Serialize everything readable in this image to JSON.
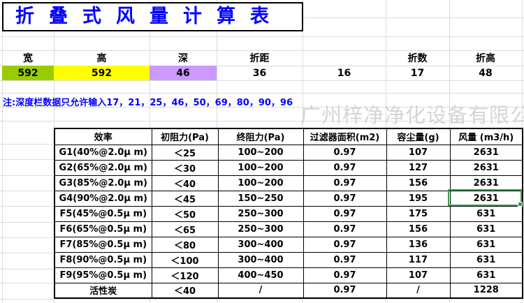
{
  "title": "折叠式风量计算表",
  "watermark": "广州梓净净化设备有限公司",
  "note": "注:深度栏数据只允许输入17，21，25，46，50，69，80，90，96",
  "params": {
    "headers": [
      "宽",
      "高",
      "深",
      "折距",
      "",
      "折数",
      "折高"
    ],
    "values": [
      "592",
      "592",
      "46",
      "36",
      "16",
      "17",
      "48"
    ]
  },
  "main_table": {
    "headers": [
      "效率",
      "初阻力(Pa)",
      "终阻力(Pa)",
      "过滤器面积(m2)",
      "容尘量(g)",
      "风量 (m3/h)"
    ],
    "rows": [
      [
        "G1(40%@2.0μ m)",
        "＜25",
        "100~200",
        "0.97",
        "107",
        "2631"
      ],
      [
        "G2(65%@2.0μ m)",
        "＜30",
        "100~200",
        "0.97",
        "127",
        "2631"
      ],
      [
        "G3(85%@2.0μ m)",
        "＜40",
        "100~200",
        "0.97",
        "156",
        "2631"
      ],
      [
        "G4(90%@2.0μ m)",
        "＜45",
        "150~250",
        "0.97",
        "195",
        "2631"
      ],
      [
        "F5(45%@0.5μ m)",
        "＜50",
        "250~300",
        "0.97",
        "175",
        "631"
      ],
      [
        "F6(65%@0.5μ m)",
        "＜65",
        "250~300",
        "0.97",
        "156",
        "631"
      ],
      [
        "F7(85%@0.5μ m)",
        "＜80",
        "300~400",
        "0.97",
        "136",
        "631"
      ],
      [
        "F8(90%@0.5μ m)",
        "＜100",
        "300~400",
        "0.97",
        "117",
        "631"
      ],
      [
        "F9(95%@0.5μ m)",
        "＜120",
        "400~450",
        "0.97",
        "107",
        "631"
      ],
      [
        "活性炭",
        "＜40",
        "/",
        "0.97",
        "/",
        "1228"
      ]
    ],
    "selection": {
      "row_label": "G4(90%@2.0μ m)",
      "column": "风量 (m3/h)",
      "value": "2631"
    }
  },
  "colors": {
    "title_blue": "#0000FF",
    "note_blue": "#0000FF",
    "accent_green_cell": "#99CC00",
    "accent_yellow_cell": "#FFFF00",
    "accent_purple_cell": "#CC99FF",
    "selection_border": "#35A24B",
    "watermark_gray": "#D5D5D5",
    "grid_gray": "#DCDCDC"
  }
}
